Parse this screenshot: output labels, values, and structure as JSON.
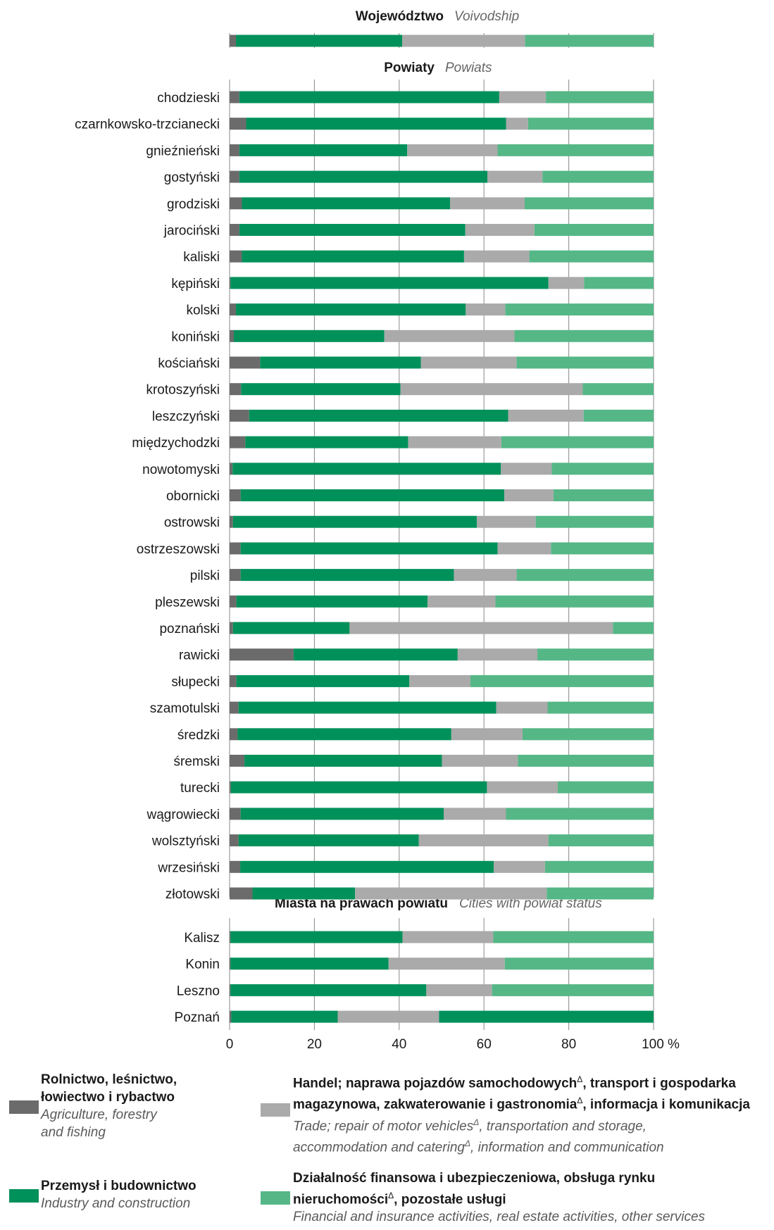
{
  "colors": {
    "agriculture": "#6b6b6b",
    "industry": "#00915a",
    "trade": "#aaaaaa",
    "financial": "#55b786",
    "grid": "#888888"
  },
  "sections": {
    "voivodship_pl": "Województwo",
    "voivodship_en": "Voivodship",
    "powiats_pl": "Powiaty",
    "powiats_en": "Powiats",
    "cities_pl": "Miasta na prawach powiatu",
    "cities_en": "Cities with powiat status"
  },
  "chart_data": {
    "type": "bar",
    "orientation": "horizontal",
    "stacked": true,
    "x_ticks": [
      "0",
      "20",
      "40",
      "60",
      "80",
      "100 %"
    ],
    "xlim": [
      0,
      100
    ],
    "grid": true,
    "series": [
      {
        "name": "Rolnictwo, leśnictwo, łowiectwo i rybactwo",
        "color": "#6b6b6b"
      },
      {
        "name": "Przemysł i budownictwo",
        "color": "#00915a"
      },
      {
        "name": "Handel; naprawa pojazdów samochodowych, transport i gospodarka magazynowa, zakwaterowanie i gastronomia, informacja i komunikacja",
        "color": "#aaaaaa"
      },
      {
        "name": "Działalność finansowa i ubezpieczeniowa, obsługa rynku nieruchomości, pozostałe usługi",
        "color": "#55b786"
      }
    ],
    "groups": [
      {
        "section": "voivodship",
        "rows": [
          {
            "label": "",
            "values": [
              1.5,
              39.2,
              29.0,
              30.3
            ]
          }
        ]
      },
      {
        "section": "powiats",
        "rows": [
          {
            "label": "chodzieski",
            "values": [
              2.3,
              61.3,
              11.0,
              25.4
            ]
          },
          {
            "label": "czarnkowsko-trzcianecki",
            "values": [
              3.9,
              61.3,
              5.2,
              29.6
            ]
          },
          {
            "label": "gnieźnieński",
            "values": [
              2.3,
              39.6,
              21.3,
              36.8
            ]
          },
          {
            "label": "gostyński",
            "values": [
              2.3,
              58.5,
              13.0,
              26.2
            ]
          },
          {
            "label": "grodziski",
            "values": [
              2.9,
              49.1,
              17.6,
              30.4
            ]
          },
          {
            "label": "jarociński",
            "values": [
              2.3,
              53.3,
              16.3,
              28.1
            ]
          },
          {
            "label": "kaliski",
            "values": [
              2.9,
              52.4,
              15.4,
              29.3
            ]
          },
          {
            "label": "kępiński",
            "values": [
              0.2,
              75.0,
              8.4,
              16.4
            ]
          },
          {
            "label": "kolski",
            "values": [
              1.5,
              54.2,
              9.3,
              35.0
            ]
          },
          {
            "label": "koniński",
            "values": [
              1.0,
              35.5,
              30.7,
              32.8
            ]
          },
          {
            "label": "kościański",
            "values": [
              7.2,
              37.9,
              22.6,
              32.3
            ]
          },
          {
            "label": "krotoszyński",
            "values": [
              2.7,
              37.6,
              43.0,
              16.7
            ]
          },
          {
            "label": "leszczyński",
            "values": [
              4.6,
              61.1,
              17.8,
              16.5
            ]
          },
          {
            "label": "międzychodzki",
            "values": [
              3.7,
              38.4,
              22.0,
              35.9
            ]
          },
          {
            "label": "nowotomyski",
            "values": [
              0.7,
              63.3,
              12.0,
              24.0
            ]
          },
          {
            "label": "obornicki",
            "values": [
              2.6,
              62.2,
              11.6,
              23.6
            ]
          },
          {
            "label": "ostrowski",
            "values": [
              0.8,
              57.5,
              13.9,
              27.8
            ]
          },
          {
            "label": "ostrzeszowski",
            "values": [
              2.6,
              60.6,
              12.6,
              24.2
            ]
          },
          {
            "label": "pilski",
            "values": [
              2.6,
              50.3,
              14.8,
              32.3
            ]
          },
          {
            "label": "pleszewski",
            "values": [
              1.6,
              45.1,
              16.0,
              37.3
            ]
          },
          {
            "label": "poznański",
            "values": [
              0.8,
              27.5,
              62.1,
              9.6
            ]
          },
          {
            "label": "rawicki",
            "values": [
              15.1,
              38.7,
              18.8,
              27.4
            ]
          },
          {
            "label": "słupecki",
            "values": [
              1.6,
              40.8,
              14.4,
              43.2
            ]
          },
          {
            "label": "szamotulski",
            "values": [
              2.1,
              60.8,
              12.1,
              25.0
            ]
          },
          {
            "label": "średzki",
            "values": [
              1.9,
              50.4,
              16.8,
              30.9
            ]
          },
          {
            "label": "śremski",
            "values": [
              3.5,
              46.6,
              17.9,
              32.0
            ]
          },
          {
            "label": "turecki",
            "values": [
              0.3,
              60.4,
              16.7,
              22.6
            ]
          },
          {
            "label": "wągrowiecki",
            "values": [
              2.6,
              47.9,
              14.7,
              34.8
            ]
          },
          {
            "label": "wolsztyński",
            "values": [
              2.1,
              42.5,
              30.6,
              24.8
            ]
          },
          {
            "label": "wrzesiński",
            "values": [
              2.5,
              59.8,
              12.1,
              25.6
            ]
          },
          {
            "label": "złotowski",
            "values": [
              5.4,
              24.2,
              45.2,
              25.2
            ]
          }
        ]
      },
      {
        "section": "cities",
        "rows": [
          {
            "label": "Kalisz",
            "values": [
              0.2,
              40.6,
              21.4,
              37.8
            ]
          },
          {
            "label": "Konin",
            "values": [
              0.2,
              37.3,
              27.4,
              35.1
            ]
          },
          {
            "label": "Leszno",
            "values": [
              0.2,
              46.2,
              15.5,
              38.1
            ]
          },
          {
            "label": "Poznań",
            "values": [
              0.4,
              25.1,
              23.9,
              50.6
            ]
          }
        ]
      }
    ]
  },
  "legend": {
    "agriculture": {
      "pl_line1": "Rolnictwo, leśnictwo,",
      "pl_line2": "łowiectwo i rybactwo",
      "en_line1": "Agriculture, forestry",
      "en_line2": "and fishing"
    },
    "industry": {
      "pl": "Przemysł i budownictwo",
      "en": "Industry and construction"
    },
    "trade": {
      "pl_1a": "Handel; naprawa pojazdów samochodowych",
      "pl_1b": ", transport i gospodarka",
      "pl_2a": "magazynowa, zakwaterowanie i gastronomia",
      "pl_2b": ", informacja i komunikacja",
      "en_1a": "Trade; repair of motor vehicles",
      "en_1b": ", transportation and storage,",
      "en_2a": "accommodation and catering",
      "en_2b": ", information and communication",
      "mark": "Δ"
    },
    "financial": {
      "pl_1": "Działalność finansowa i ubezpieczeniowa, obsługa rynku",
      "pl_2a": "nieruchomości",
      "pl_2b": ", pozostałe usługi",
      "en_1": "Financial and insurance activities, real estate activities, other services",
      "mark": "Δ"
    }
  }
}
